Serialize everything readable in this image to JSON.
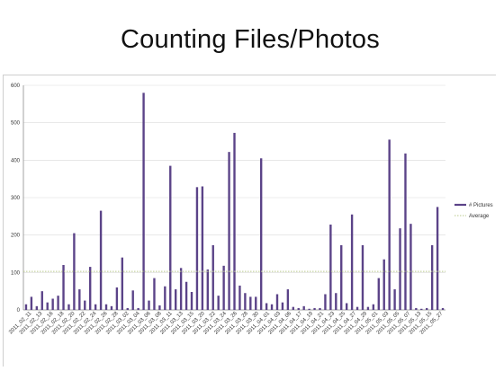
{
  "slide": {
    "title": "Counting Files/Photos"
  },
  "chart_data": {
    "type": "bar",
    "title": "",
    "xlabel": "",
    "ylabel": "",
    "ylim": [
      0,
      600
    ],
    "y_ticks": [
      0,
      100,
      200,
      300,
      400,
      500,
      600
    ],
    "grid": true,
    "legend_position": "right",
    "categories": [
      "2011_02_11",
      "2011_02_13",
      "2011_02_16",
      "2011_02_18",
      "2011_02_20",
      "2011_02_22",
      "2011_02_24",
      "2011_02_26",
      "2011_02_28",
      "2011_03_02",
      "2011_03_04",
      "2011_03_06",
      "2011_03_08",
      "2011_03_11",
      "2011_03_13",
      "2011_03_15",
      "2011_03_20",
      "2011_03_22",
      "2011_03_24",
      "2011_03_26",
      "2011_03_28",
      "2011_03_30",
      "2011_04_01",
      "2011_04_03",
      "2011_04_06",
      "2011_04_17",
      "2011_04_19",
      "2011_04_21",
      "2011_04_23",
      "2011_04_25",
      "2011_04_27",
      "2011_04_29",
      "2011_05_01",
      "2011_05_03",
      "2011_05_05",
      "2011_05_07",
      "2011_05_13",
      "2011_05_15",
      "2011_05_27"
    ],
    "bar_values": [
      15,
      35,
      10,
      50,
      20,
      30,
      38,
      120,
      15,
      205,
      55,
      25,
      115,
      15,
      265,
      15,
      10,
      60,
      140,
      5,
      52,
      5,
      580,
      25,
      85,
      12,
      63,
      385,
      55,
      112,
      75,
      48,
      328,
      330,
      108,
      173,
      38,
      118,
      422,
      473,
      65,
      45,
      35,
      35,
      405,
      18,
      15,
      42,
      20,
      55,
      8,
      5,
      10,
      3,
      5,
      5,
      42,
      228,
      45,
      173,
      18,
      255,
      8,
      173,
      8,
      15,
      85,
      135,
      455,
      55,
      218,
      418,
      230,
      5,
      3,
      5,
      173,
      275,
      5
    ],
    "series": [
      {
        "name": "# Pictures",
        "kind": "bar",
        "color": "#5b4388"
      },
      {
        "name": "Average",
        "kind": "line",
        "value": 103,
        "color": "#b9c98c"
      }
    ]
  }
}
